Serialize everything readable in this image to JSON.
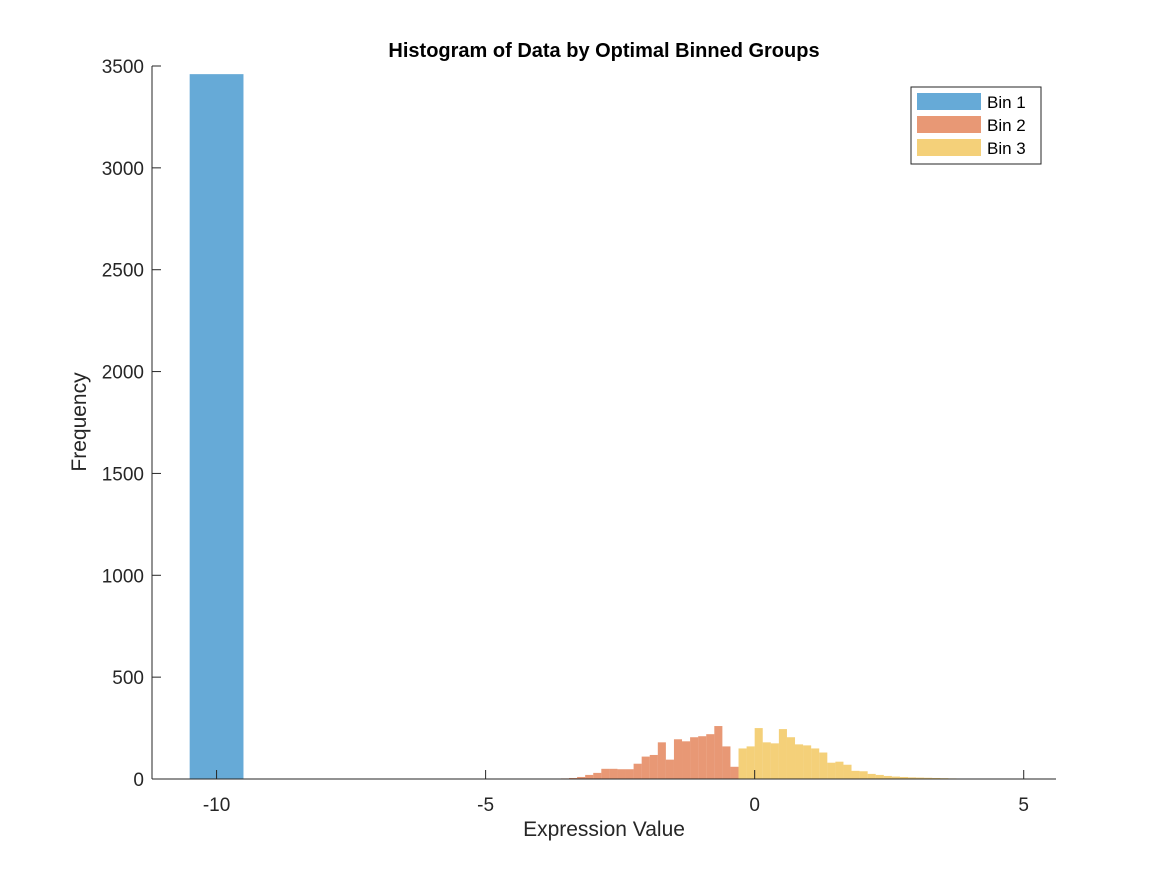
{
  "chart_data": {
    "type": "bar",
    "title": "Histogram of Data by Optimal Binned Groups",
    "xlabel": "Expression Value",
    "ylabel": "Frequency",
    "xlim": [
      -11.2,
      5.6
    ],
    "ylim": [
      0,
      3500
    ],
    "xticks": [
      -10,
      -5,
      0,
      5
    ],
    "yticks": [
      0,
      500,
      1000,
      1500,
      2000,
      2500,
      3000,
      3500
    ],
    "grid": false,
    "legend_position": "top-right",
    "series": [
      {
        "name": "Bin 1",
        "color": "#0072BD",
        "bins": [
          {
            "x0": -10.5,
            "x1": -9.5,
            "count": 3460
          }
        ]
      },
      {
        "name": "Bin 2",
        "color": "#D95319",
        "bins": [
          {
            "x0": -3.75,
            "x1": -3.6,
            "count": 2
          },
          {
            "x0": -3.6,
            "x1": -3.45,
            "count": 3
          },
          {
            "x0": -3.45,
            "x1": -3.3,
            "count": 5
          },
          {
            "x0": -3.3,
            "x1": -3.15,
            "count": 10
          },
          {
            "x0": -3.15,
            "x1": -3.0,
            "count": 20
          },
          {
            "x0": -3.0,
            "x1": -2.85,
            "count": 30
          },
          {
            "x0": -2.85,
            "x1": -2.7,
            "count": 50
          },
          {
            "x0": -2.7,
            "x1": -2.55,
            "count": 50
          },
          {
            "x0": -2.55,
            "x1": -2.4,
            "count": 48
          },
          {
            "x0": -2.4,
            "x1": -2.25,
            "count": 48
          },
          {
            "x0": -2.25,
            "x1": -2.1,
            "count": 75
          },
          {
            "x0": -2.1,
            "x1": -1.95,
            "count": 110
          },
          {
            "x0": -1.95,
            "x1": -1.8,
            "count": 118
          },
          {
            "x0": -1.8,
            "x1": -1.65,
            "count": 180
          },
          {
            "x0": -1.65,
            "x1": -1.5,
            "count": 95
          },
          {
            "x0": -1.5,
            "x1": -1.35,
            "count": 195
          },
          {
            "x0": -1.35,
            "x1": -1.2,
            "count": 185
          },
          {
            "x0": -1.2,
            "x1": -1.05,
            "count": 205
          },
          {
            "x0": -1.05,
            "x1": -0.9,
            "count": 210
          },
          {
            "x0": -0.9,
            "x1": -0.75,
            "count": 220
          },
          {
            "x0": -0.75,
            "x1": -0.6,
            "count": 260
          },
          {
            "x0": -0.6,
            "x1": -0.45,
            "count": 160
          },
          {
            "x0": -0.45,
            "x1": -0.3,
            "count": 60
          }
        ]
      },
      {
        "name": "Bin 3",
        "color": "#EDB120",
        "bins": [
          {
            "x0": -0.3,
            "x1": -0.15,
            "count": 150
          },
          {
            "x0": -0.15,
            "x1": 0.0,
            "count": 160
          },
          {
            "x0": 0.0,
            "x1": 0.15,
            "count": 250
          },
          {
            "x0": 0.15,
            "x1": 0.3,
            "count": 180
          },
          {
            "x0": 0.3,
            "x1": 0.45,
            "count": 175
          },
          {
            "x0": 0.45,
            "x1": 0.6,
            "count": 245
          },
          {
            "x0": 0.6,
            "x1": 0.75,
            "count": 205
          },
          {
            "x0": 0.75,
            "x1": 0.9,
            "count": 170
          },
          {
            "x0": 0.9,
            "x1": 1.05,
            "count": 165
          },
          {
            "x0": 1.05,
            "x1": 1.2,
            "count": 150
          },
          {
            "x0": 1.2,
            "x1": 1.35,
            "count": 130
          },
          {
            "x0": 1.35,
            "x1": 1.5,
            "count": 80
          },
          {
            "x0": 1.5,
            "x1": 1.65,
            "count": 85
          },
          {
            "x0": 1.65,
            "x1": 1.8,
            "count": 70
          },
          {
            "x0": 1.8,
            "x1": 1.95,
            "count": 40
          },
          {
            "x0": 1.95,
            "x1": 2.1,
            "count": 38
          },
          {
            "x0": 2.1,
            "x1": 2.25,
            "count": 25
          },
          {
            "x0": 2.25,
            "x1": 2.4,
            "count": 20
          },
          {
            "x0": 2.4,
            "x1": 2.55,
            "count": 15
          },
          {
            "x0": 2.55,
            "x1": 2.7,
            "count": 12
          },
          {
            "x0": 2.7,
            "x1": 2.85,
            "count": 10
          },
          {
            "x0": 2.85,
            "x1": 3.0,
            "count": 8
          },
          {
            "x0": 3.0,
            "x1": 3.15,
            "count": 7
          },
          {
            "x0": 3.15,
            "x1": 3.3,
            "count": 6
          },
          {
            "x0": 3.3,
            "x1": 3.45,
            "count": 5
          },
          {
            "x0": 3.45,
            "x1": 3.6,
            "count": 4
          },
          {
            "x0": 3.6,
            "x1": 3.75,
            "count": 3
          },
          {
            "x0": 3.75,
            "x1": 3.9,
            "count": 2
          }
        ]
      }
    ]
  }
}
